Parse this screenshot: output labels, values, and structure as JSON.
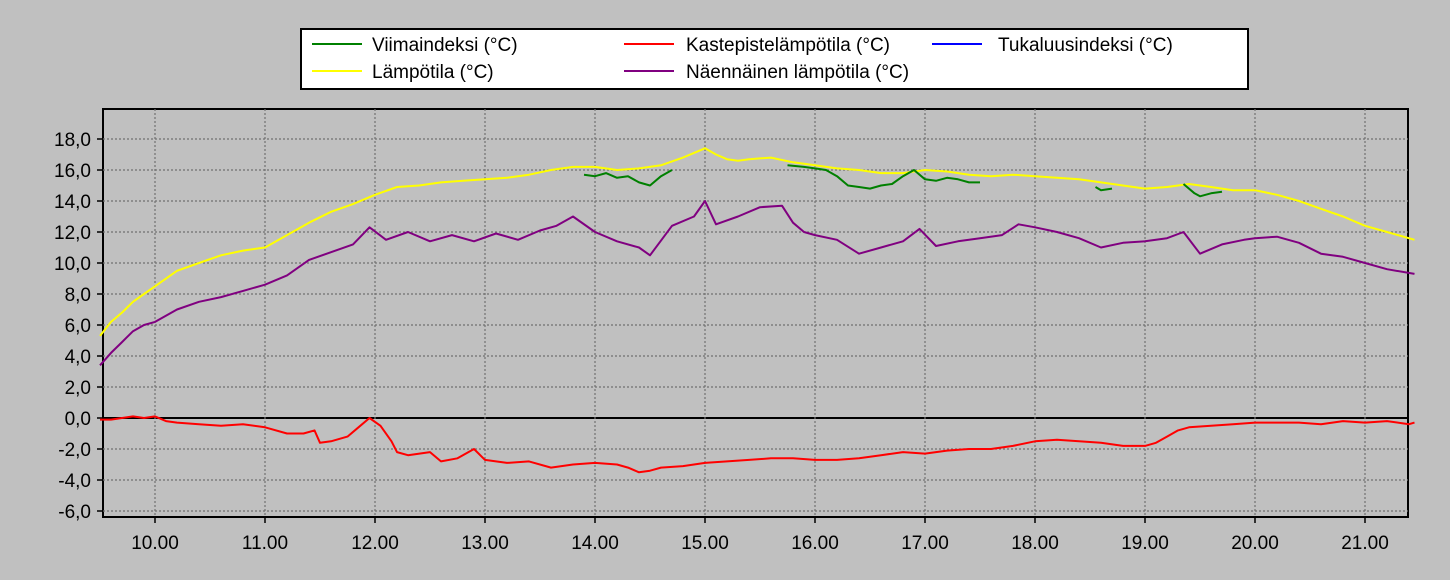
{
  "chart_data": {
    "type": "line",
    "title": "",
    "xlabel": "",
    "ylabel": "",
    "xlim": [
      9.5,
      21.45
    ],
    "ylim": [
      -6.0,
      19.0
    ],
    "grid": true,
    "legend_position": "top",
    "x_ticks": [
      10,
      11,
      12,
      13,
      14,
      15,
      16,
      17,
      18,
      19,
      20,
      21
    ],
    "x_tick_labels": [
      "10.00",
      "11.00",
      "12.00",
      "13.00",
      "14.00",
      "15.00",
      "16.00",
      "17.00",
      "18.00",
      "19.00",
      "20.00",
      "21.00"
    ],
    "y_ticks": [
      -6,
      -4,
      -2,
      0,
      2,
      4,
      6,
      8,
      10,
      12,
      14,
      16,
      18
    ],
    "y_tick_labels": [
      "-6,0",
      "-4,0",
      "-2,0",
      "0,0",
      "2,0",
      "4,0",
      "6,0",
      "8,0",
      "10,0",
      "12,0",
      "14,0",
      "16,0",
      "18,0"
    ],
    "series": [
      {
        "name": "Viimaindeksi (°C)",
        "color": "#008000",
        "segments": [
          {
            "x": [
              13.9,
              14.0,
              14.1,
              14.2,
              14.3,
              14.4,
              14.5,
              14.6,
              14.7
            ],
            "y": [
              15.7,
              15.6,
              15.8,
              15.5,
              15.6,
              15.2,
              15.0,
              15.6,
              16.0
            ]
          },
          {
            "x": [
              15.75,
              15.9,
              16.0,
              16.1,
              16.2,
              16.3,
              16.4,
              16.5,
              16.6,
              16.7,
              16.8,
              16.9,
              17.0,
              17.1,
              17.2,
              17.3,
              17.4,
              17.5
            ],
            "y": [
              16.3,
              16.2,
              16.1,
              16.0,
              15.6,
              15.0,
              14.9,
              14.8,
              15.0,
              15.1,
              15.6,
              16.0,
              15.4,
              15.3,
              15.5,
              15.4,
              15.2,
              15.2
            ]
          },
          {
            "x": [
              18.55,
              18.6,
              18.7
            ],
            "y": [
              14.9,
              14.7,
              14.8
            ]
          },
          {
            "x": [
              19.35,
              19.45,
              19.5,
              19.6,
              19.7
            ],
            "y": [
              15.1,
              14.5,
              14.3,
              14.5,
              14.6
            ]
          }
        ]
      },
      {
        "name": "Kastepistelämpötila (°C)",
        "color": "#ff0000",
        "x": [
          9.5,
          9.6,
          9.7,
          9.8,
          9.9,
          10.0,
          10.1,
          10.2,
          10.4,
          10.6,
          10.8,
          11.0,
          11.2,
          11.35,
          11.45,
          11.5,
          11.6,
          11.75,
          11.85,
          11.95,
          12.05,
          12.15,
          12.2,
          12.3,
          12.5,
          12.6,
          12.75,
          12.9,
          13.0,
          13.2,
          13.4,
          13.6,
          13.8,
          14.0,
          14.2,
          14.3,
          14.4,
          14.5,
          14.6,
          14.8,
          15.0,
          15.2,
          15.4,
          15.6,
          15.8,
          16.0,
          16.2,
          16.4,
          16.6,
          16.8,
          17.0,
          17.2,
          17.4,
          17.6,
          17.8,
          18.0,
          18.2,
          18.4,
          18.6,
          18.8,
          19.0,
          19.1,
          19.2,
          19.3,
          19.4,
          19.6,
          19.8,
          20.0,
          20.2,
          20.4,
          20.6,
          20.8,
          21.0,
          21.2,
          21.4,
          21.45
        ],
        "y": [
          -0.1,
          -0.1,
          0.0,
          0.1,
          0.0,
          0.1,
          -0.2,
          -0.3,
          -0.4,
          -0.5,
          -0.4,
          -0.6,
          -1.0,
          -1.0,
          -0.8,
          -1.6,
          -1.5,
          -1.2,
          -0.6,
          0.0,
          -0.5,
          -1.5,
          -2.2,
          -2.4,
          -2.2,
          -2.8,
          -2.6,
          -2.0,
          -2.7,
          -2.9,
          -2.8,
          -3.2,
          -3.0,
          -2.9,
          -3.0,
          -3.2,
          -3.5,
          -3.4,
          -3.2,
          -3.1,
          -2.9,
          -2.8,
          -2.7,
          -2.6,
          -2.6,
          -2.7,
          -2.7,
          -2.6,
          -2.4,
          -2.2,
          -2.3,
          -2.1,
          -2.0,
          -2.0,
          -1.8,
          -1.5,
          -1.4,
          -1.5,
          -1.6,
          -1.8,
          -1.8,
          -1.6,
          -1.2,
          -0.8,
          -0.6,
          -0.5,
          -0.4,
          -0.3,
          -0.3,
          -0.3,
          -0.4,
          -0.2,
          -0.3,
          -0.2,
          -0.4,
          -0.3
        ]
      },
      {
        "name": "Tukaluusindeksi (°C)",
        "color": "#0000ff",
        "x": [],
        "y": []
      },
      {
        "name": "Lämpötila (°C)",
        "color": "#ffff00",
        "x": [
          9.5,
          9.6,
          9.7,
          9.8,
          9.9,
          10.0,
          10.2,
          10.4,
          10.6,
          10.8,
          11.0,
          11.2,
          11.4,
          11.6,
          11.8,
          12.0,
          12.2,
          12.4,
          12.6,
          12.8,
          13.0,
          13.2,
          13.4,
          13.6,
          13.8,
          14.0,
          14.2,
          14.4,
          14.6,
          14.8,
          15.0,
          15.1,
          15.2,
          15.3,
          15.4,
          15.6,
          15.8,
          16.0,
          16.2,
          16.4,
          16.6,
          16.8,
          17.0,
          17.2,
          17.4,
          17.6,
          17.8,
          18.0,
          18.2,
          18.4,
          18.6,
          18.8,
          19.0,
          19.2,
          19.4,
          19.6,
          19.8,
          20.0,
          20.2,
          20.4,
          20.6,
          20.8,
          21.0,
          21.2,
          21.45
        ],
        "y": [
          5.3,
          6.2,
          6.8,
          7.5,
          8.0,
          8.5,
          9.5,
          10.0,
          10.5,
          10.8,
          11.0,
          11.8,
          12.6,
          13.3,
          13.8,
          14.4,
          14.9,
          15.0,
          15.2,
          15.3,
          15.4,
          15.5,
          15.7,
          16.0,
          16.2,
          16.2,
          16.0,
          16.1,
          16.3,
          16.8,
          17.4,
          17.0,
          16.7,
          16.6,
          16.7,
          16.8,
          16.5,
          16.3,
          16.1,
          16.0,
          15.8,
          15.8,
          16.0,
          15.9,
          15.7,
          15.6,
          15.7,
          15.6,
          15.5,
          15.4,
          15.2,
          15.0,
          14.8,
          14.9,
          15.1,
          14.9,
          14.7,
          14.7,
          14.4,
          14.0,
          13.5,
          13.0,
          12.4,
          12.0,
          11.5
        ]
      },
      {
        "name": "Näennäinen lämpötila (°C)",
        "color": "#800080",
        "x": [
          9.5,
          9.6,
          9.7,
          9.8,
          9.9,
          10.0,
          10.2,
          10.4,
          10.6,
          10.8,
          11.0,
          11.2,
          11.4,
          11.6,
          11.8,
          11.95,
          12.1,
          12.3,
          12.5,
          12.7,
          12.9,
          13.1,
          13.3,
          13.5,
          13.65,
          13.8,
          14.0,
          14.2,
          14.4,
          14.5,
          14.7,
          14.9,
          15.0,
          15.1,
          15.3,
          15.5,
          15.7,
          15.8,
          15.9,
          16.0,
          16.2,
          16.4,
          16.6,
          16.8,
          16.95,
          17.1,
          17.3,
          17.5,
          17.7,
          17.85,
          18.0,
          18.2,
          18.4,
          18.6,
          18.8,
          19.0,
          19.2,
          19.35,
          19.5,
          19.7,
          19.9,
          20.0,
          20.2,
          20.4,
          20.6,
          20.8,
          21.0,
          21.2,
          21.45
        ],
        "y": [
          3.4,
          4.2,
          4.9,
          5.6,
          6.0,
          6.2,
          7.0,
          7.5,
          7.8,
          8.2,
          8.6,
          9.2,
          10.2,
          10.7,
          11.2,
          12.3,
          11.5,
          12.0,
          11.4,
          11.8,
          11.4,
          11.9,
          11.5,
          12.1,
          12.4,
          13.0,
          12.0,
          11.4,
          11.0,
          10.5,
          12.4,
          13.0,
          14.0,
          12.5,
          13.0,
          13.6,
          13.7,
          12.6,
          12.0,
          11.8,
          11.5,
          10.6,
          11.0,
          11.4,
          12.2,
          11.1,
          11.4,
          11.6,
          11.8,
          12.5,
          12.3,
          12.0,
          11.6,
          11.0,
          11.3,
          11.4,
          11.6,
          12.0,
          10.6,
          11.2,
          11.5,
          11.6,
          11.7,
          11.3,
          10.6,
          10.4,
          10.0,
          9.6,
          9.3
        ]
      }
    ]
  }
}
